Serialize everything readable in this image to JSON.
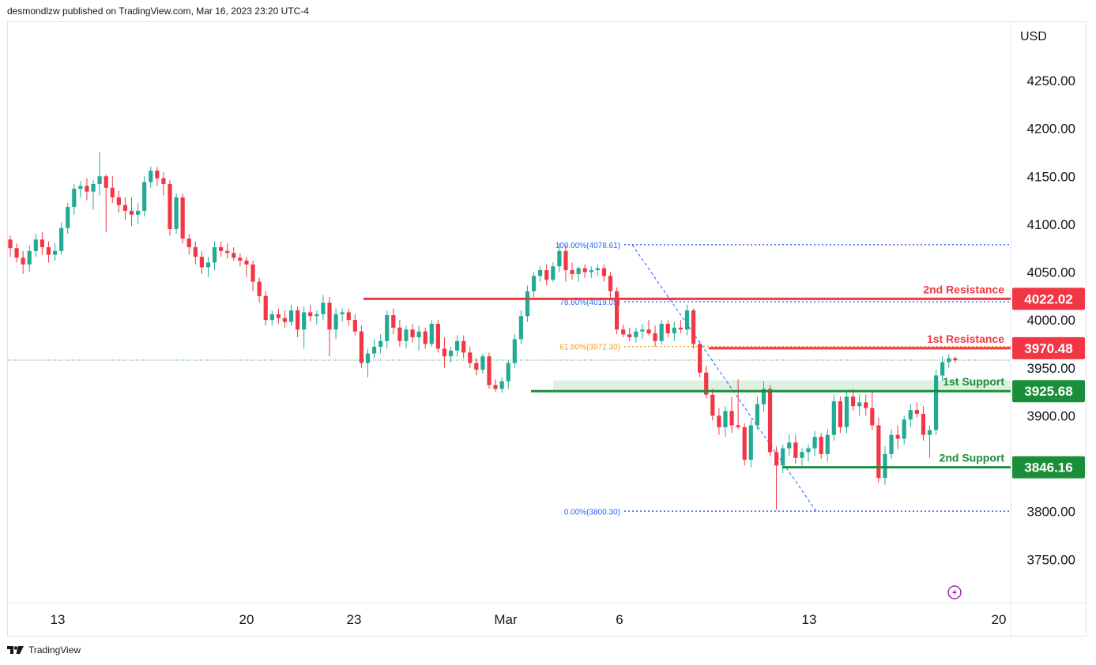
{
  "header": {
    "text": "desmondlzw published on TradingView.com, Mar 16, 2023 23:20 UTC-4"
  },
  "footer": {
    "brand": "TradingView"
  },
  "colors": {
    "up": "#22ab94",
    "down": "#f23645",
    "resistance": "#f23645",
    "support": "#1b8e3a",
    "fib": "#2962ff",
    "fib618": "#e8a02f"
  },
  "chart_data": {
    "type": "candlestick",
    "currency": "USD",
    "ylim": [
      3710,
      4290
    ],
    "y_ticks": [
      4250,
      4200,
      4150,
      4100,
      4050,
      4000,
      3950,
      3900,
      3850,
      3800,
      3750
    ],
    "y_tick_labels": [
      "4250.00",
      "4200.00",
      "4150.00",
      "4100.00",
      "4050.00",
      "4000.00",
      "3950.00",
      "3900.00",
      "",
      "3800.00",
      "3750.00"
    ],
    "x_ticks": [
      "13",
      "20",
      "23",
      "Mar",
      "6",
      "13",
      "20"
    ],
    "levels": [
      {
        "name": "2nd Resistance",
        "value": 4022.02,
        "label": "4022.02",
        "kind": "resistance"
      },
      {
        "name": "1st Resistance",
        "value": 3970.48,
        "label": "3970.48",
        "kind": "resistance"
      },
      {
        "name": "1st Support",
        "value": 3925.68,
        "label": "3925.68",
        "kind": "support"
      },
      {
        "name": "2nd Support",
        "value": 3846.16,
        "label": "3846.16",
        "kind": "support"
      }
    ],
    "fibonacci": [
      {
        "label": "100.00%(4078.61)",
        "value": 4078.61
      },
      {
        "label": "78.60%(4019.05)",
        "value": 4019.05
      },
      {
        "label": "61.80%(3972.30)",
        "value": 3972.3
      },
      {
        "label": "0.00%(3800.30)",
        "value": 3800.3
      }
    ],
    "candles": [
      [
        4084,
        4088,
        4066,
        4075
      ],
      [
        4075,
        4080,
        4060,
        4065
      ],
      [
        4065,
        4072,
        4048,
        4058
      ],
      [
        4058,
        4078,
        4050,
        4072
      ],
      [
        4072,
        4090,
        4066,
        4084
      ],
      [
        4084,
        4092,
        4068,
        4076
      ],
      [
        4076,
        4082,
        4060,
        4068
      ],
      [
        4068,
        4080,
        4062,
        4072
      ],
      [
        4072,
        4102,
        4068,
        4096
      ],
      [
        4096,
        4122,
        4090,
        4118
      ],
      [
        4118,
        4142,
        4110,
        4137
      ],
      [
        4137,
        4145,
        4128,
        4140
      ],
      [
        4140,
        4148,
        4125,
        4134
      ],
      [
        4134,
        4146,
        4115,
        4142
      ],
      [
        4142,
        4175,
        4130,
        4150
      ],
      [
        4150,
        4152,
        4092,
        4138
      ],
      [
        4138,
        4150,
        4122,
        4128
      ],
      [
        4128,
        4135,
        4112,
        4120
      ],
      [
        4120,
        4128,
        4104,
        4114
      ],
      [
        4114,
        4128,
        4098,
        4110
      ],
      [
        4110,
        4122,
        4100,
        4114
      ],
      [
        4114,
        4150,
        4108,
        4144
      ],
      [
        4144,
        4160,
        4138,
        4156
      ],
      [
        4156,
        4160,
        4140,
        4148
      ],
      [
        4148,
        4154,
        4130,
        4142
      ],
      [
        4142,
        4146,
        4088,
        4095
      ],
      [
        4095,
        4132,
        4090,
        4128
      ],
      [
        4128,
        4132,
        4080,
        4085
      ],
      [
        4085,
        4090,
        4068,
        4076
      ],
      [
        4076,
        4082,
        4058,
        4066
      ],
      [
        4066,
        4072,
        4048,
        4055
      ],
      [
        4055,
        4066,
        4045,
        4060
      ],
      [
        4060,
        4082,
        4052,
        4076
      ],
      [
        4076,
        4082,
        4066,
        4072
      ],
      [
        4072,
        4080,
        4064,
        4070
      ],
      [
        4070,
        4076,
        4062,
        4065
      ],
      [
        4065,
        4070,
        4056,
        4062
      ],
      [
        4062,
        4066,
        4045,
        4058
      ],
      [
        4058,
        4062,
        4030,
        4040
      ],
      [
        4040,
        4044,
        4018,
        4025
      ],
      [
        4025,
        4030,
        3994,
        4000
      ],
      [
        4000,
        4010,
        3994,
        4006
      ],
      [
        4006,
        4012,
        3996,
        4002
      ],
      [
        4002,
        4010,
        3992,
        3998
      ],
      [
        3998,
        4016,
        3994,
        4010
      ],
      [
        4010,
        4014,
        3982,
        3990
      ],
      [
        3990,
        4014,
        3970,
        4008
      ],
      [
        4008,
        4016,
        3998,
        4004
      ],
      [
        4004,
        4010,
        3995,
        4006
      ],
      [
        4006,
        4026,
        4000,
        4018
      ],
      [
        4018,
        4024,
        3962,
        3990
      ],
      [
        3990,
        4012,
        3980,
        4006
      ],
      [
        4006,
        4012,
        3998,
        4008
      ],
      [
        4008,
        4012,
        3994,
        4000
      ],
      [
        4000,
        4006,
        3984,
        3988
      ],
      [
        3988,
        3994,
        3950,
        3955
      ],
      [
        3955,
        3970,
        3940,
        3965
      ],
      [
        3965,
        3980,
        3960,
        3972
      ],
      [
        3972,
        3985,
        3965,
        3978
      ],
      [
        3978,
        4010,
        3970,
        4005
      ],
      [
        4005,
        4012,
        3985,
        3992
      ],
      [
        3992,
        4000,
        3972,
        3978
      ],
      [
        3978,
        3994,
        3970,
        3990
      ],
      [
        3990,
        3996,
        3976,
        3982
      ],
      [
        3982,
        3994,
        3968,
        3988
      ],
      [
        3988,
        3992,
        3970,
        3975
      ],
      [
        3975,
        4000,
        3972,
        3996
      ],
      [
        3996,
        4000,
        3966,
        3970
      ],
      [
        3970,
        3982,
        3950,
        3962
      ],
      [
        3962,
        3972,
        3956,
        3968
      ],
      [
        3968,
        3984,
        3962,
        3978
      ],
      [
        3978,
        3984,
        3960,
        3966
      ],
      [
        3966,
        3972,
        3950,
        3955
      ],
      [
        3955,
        3960,
        3942,
        3948
      ],
      [
        3948,
        3965,
        3944,
        3962
      ],
      [
        3962,
        3966,
        3928,
        3932
      ],
      [
        3932,
        3938,
        3925,
        3928
      ],
      [
        3928,
        3940,
        3924,
        3936
      ],
      [
        3936,
        3958,
        3928,
        3955
      ],
      [
        3955,
        3985,
        3950,
        3980
      ],
      [
        3980,
        4010,
        3975,
        4004
      ],
      [
        4004,
        4036,
        3998,
        4030
      ],
      [
        4030,
        4050,
        4024,
        4046
      ],
      [
        4046,
        4056,
        4040,
        4052
      ],
      [
        4052,
        4058,
        4036,
        4042
      ],
      [
        4042,
        4060,
        4040,
        4056
      ],
      [
        4056,
        4080,
        4050,
        4072
      ],
      [
        4072,
        4078,
        4040,
        4052
      ],
      [
        4052,
        4060,
        4042,
        4048
      ],
      [
        4048,
        4056,
        4040,
        4054
      ],
      [
        4054,
        4058,
        4044,
        4050
      ],
      [
        4050,
        4056,
        4044,
        4052
      ],
      [
        4052,
        4058,
        4046,
        4054
      ],
      [
        4054,
        4058,
        4040,
        4046
      ],
      [
        4046,
        4050,
        4022,
        4030
      ],
      [
        4030,
        4034,
        3985,
        3990
      ],
      [
        3990,
        3995,
        3982,
        3985
      ],
      [
        3985,
        3992,
        3978,
        3982
      ],
      [
        3982,
        3992,
        3976,
        3988
      ],
      [
        3988,
        3996,
        3980,
        3990
      ],
      [
        3990,
        4000,
        3984,
        3986
      ],
      [
        3986,
        3994,
        3972,
        3978
      ],
      [
        3978,
        4000,
        3974,
        3996
      ],
      [
        3996,
        4000,
        3982,
        3986
      ],
      [
        3986,
        3998,
        3978,
        3992
      ],
      [
        3992,
        4000,
        3986,
        3990
      ],
      [
        3990,
        4016,
        3984,
        4010
      ],
      [
        4010,
        4012,
        3970,
        3975
      ],
      [
        3975,
        3978,
        3940,
        3945
      ],
      [
        3945,
        3952,
        3918,
        3922
      ],
      [
        3922,
        3928,
        3895,
        3900
      ],
      [
        3900,
        3908,
        3880,
        3888
      ],
      [
        3888,
        3910,
        3878,
        3905
      ],
      [
        3905,
        3920,
        3882,
        3890
      ],
      [
        3890,
        3938,
        3886,
        3888
      ],
      [
        3888,
        3892,
        3848,
        3854
      ],
      [
        3854,
        3896,
        3846,
        3890
      ],
      [
        3890,
        3920,
        3885,
        3912
      ],
      [
        3912,
        3936,
        3904,
        3928
      ],
      [
        3928,
        3932,
        3858,
        3862
      ],
      [
        3862,
        3868,
        3802,
        3848
      ],
      [
        3848,
        3870,
        3840,
        3866
      ],
      [
        3866,
        3880,
        3858,
        3872
      ],
      [
        3872,
        3880,
        3850,
        3856
      ],
      [
        3856,
        3866,
        3848,
        3862
      ],
      [
        3862,
        3870,
        3852,
        3866
      ],
      [
        3866,
        3884,
        3858,
        3878
      ],
      [
        3878,
        3882,
        3855,
        3860
      ],
      [
        3860,
        3886,
        3852,
        3880
      ],
      [
        3880,
        3922,
        3874,
        3915
      ],
      [
        3915,
        3920,
        3882,
        3888
      ],
      [
        3888,
        3926,
        3882,
        3920
      ],
      [
        3920,
        3928,
        3905,
        3910
      ],
      [
        3910,
        3922,
        3900,
        3914
      ],
      [
        3914,
        3922,
        3900,
        3908
      ],
      [
        3908,
        3926,
        3885,
        3890
      ],
      [
        3890,
        3898,
        3830,
        3835
      ],
      [
        3835,
        3868,
        3828,
        3860
      ],
      [
        3860,
        3886,
        3855,
        3880
      ],
      [
        3880,
        3890,
        3865,
        3876
      ],
      [
        3876,
        3900,
        3870,
        3896
      ],
      [
        3896,
        3912,
        3888,
        3906
      ],
      [
        3906,
        3914,
        3898,
        3902
      ],
      [
        3902,
        3910,
        3874,
        3880
      ],
      [
        3880,
        3890,
        3856,
        3885
      ],
      [
        3885,
        3948,
        3880,
        3942
      ],
      [
        3942,
        3962,
        3936,
        3956
      ],
      [
        3956,
        3964,
        3950,
        3960
      ],
      [
        3960,
        3962,
        3955,
        3958
      ]
    ]
  }
}
